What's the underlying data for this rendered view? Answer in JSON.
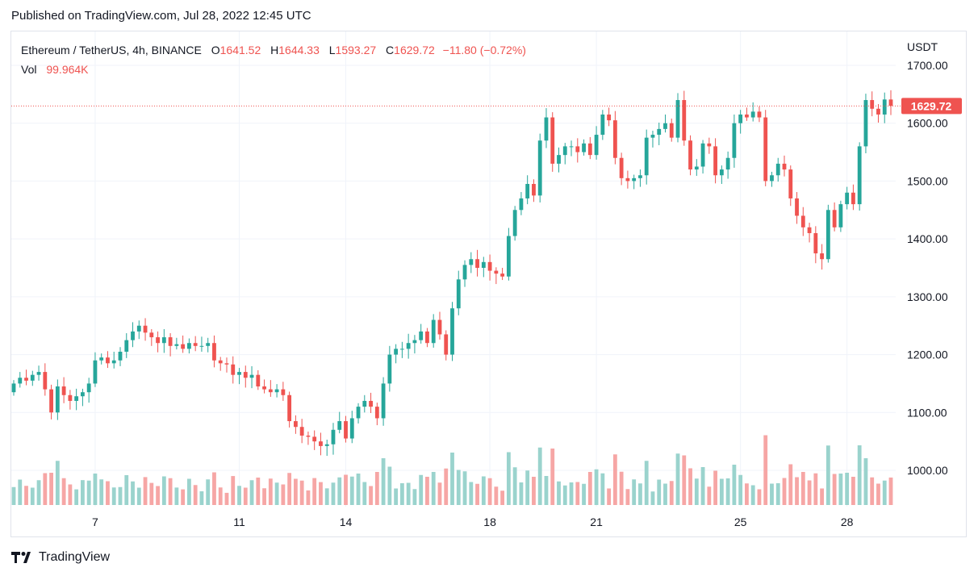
{
  "published": "Published on TradingView.com, Jul 28, 2022 12:45 UTC",
  "legend": {
    "symbol": "Ethereum / TetherUS, 4h, BINANCE",
    "o_label": "O",
    "o_value": "1641.52",
    "h_label": "H",
    "h_value": "1644.33",
    "l_label": "L",
    "l_value": "1593.27",
    "c_label": "C",
    "c_value": "1629.72",
    "change": "−11.80 (−0.72%)",
    "vol_label": "Vol",
    "vol_value": "99.964K"
  },
  "footer": {
    "brand": "TradingView"
  },
  "colors": {
    "up": "#26a69a",
    "down": "#ef5350",
    "up_vol": "#9ad3cd",
    "down_vol": "#f6a6a5",
    "grid": "#f0f3fa",
    "axis_text": "#131722"
  },
  "chart_data": {
    "type": "candlestick",
    "title": "Ethereum / TetherUS, 4h, BINANCE",
    "currency_label": "USDT",
    "y_ticks": [
      "1700.00",
      "1600.00",
      "1500.00",
      "1400.00",
      "1300.00",
      "1200.00",
      "1100.00",
      "1000.00"
    ],
    "x_ticks": [
      {
        "label": "7",
        "index": 13
      },
      {
        "label": "11",
        "index": 36
      },
      {
        "label": "14",
        "index": 53
      },
      {
        "label": "18",
        "index": 76
      },
      {
        "label": "21",
        "index": 93
      },
      {
        "label": "25",
        "index": 116
      },
      {
        "label": "28",
        "index": 133
      }
    ],
    "ylim": [
      936,
      1712
    ],
    "last_price": "1629.72",
    "last_price_value": 1629.72,
    "grid": true,
    "close": [
      1150,
      1160,
      1155,
      1165,
      1170,
      1140,
      1100,
      1145,
      1130,
      1120,
      1128,
      1135,
      1150,
      1190,
      1195,
      1185,
      1190,
      1205,
      1225,
      1240,
      1250,
      1238,
      1230,
      1220,
      1230,
      1215,
      1218,
      1210,
      1220,
      1215,
      1215,
      1220,
      1190,
      1185,
      1183,
      1165,
      1170,
      1160,
      1165,
      1145,
      1140,
      1135,
      1140,
      1130,
      1085,
      1075,
      1060,
      1058,
      1050,
      1042,
      1045,
      1070,
      1085,
      1055,
      1090,
      1110,
      1120,
      1110,
      1090,
      1150,
      1200,
      1210,
      1210,
      1220,
      1225,
      1240,
      1220,
      1260,
      1235,
      1200,
      1280,
      1330,
      1355,
      1365,
      1350,
      1360,
      1345,
      1340,
      1335,
      1405,
      1450,
      1470,
      1495,
      1475,
      1570,
      1610,
      1530,
      1545,
      1560,
      1560,
      1550,
      1565,
      1545,
      1580,
      1615,
      1605,
      1540,
      1505,
      1500,
      1505,
      1510,
      1575,
      1580,
      1590,
      1600,
      1575,
      1640,
      1570,
      1520,
      1525,
      1565,
      1560,
      1510,
      1520,
      1540,
      1600,
      1615,
      1610,
      1620,
      1610,
      1500,
      1510,
      1530,
      1520,
      1470,
      1440,
      1420,
      1410,
      1375,
      1365,
      1450,
      1420,
      1460,
      1480,
      1460,
      1560,
      1640,
      1625,
      1615,
      1641,
      1630
    ]
  }
}
